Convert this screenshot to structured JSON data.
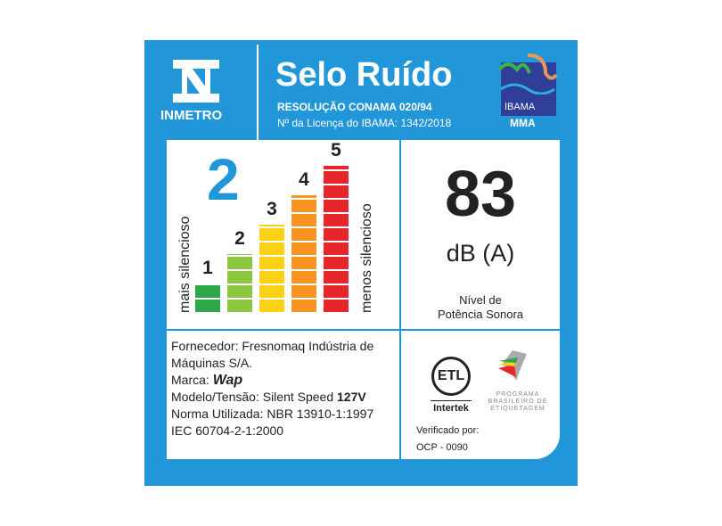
{
  "header": {
    "org": "INMETRO",
    "title": "Selo Ruído",
    "resolution": "RESOLUÇÃO CONAMA 020/94",
    "license": "Nº da Licença do IBAMA: 1342/2018",
    "ibama": "IBAMA",
    "mma": "MMA"
  },
  "rating": {
    "value": "2",
    "more_quiet": "mais silencioso",
    "less_quiet": "menos silencioso",
    "levels": [
      {
        "label": "1",
        "color": "#2aa84a",
        "fill": 1
      },
      {
        "label": "2",
        "color": "#8dc63f",
        "fill": 2
      },
      {
        "label": "3",
        "color": "#fcd116",
        "fill": 3
      },
      {
        "label": "4",
        "color": "#f7941d",
        "fill": 4
      },
      {
        "label": "5",
        "color": "#e8262a",
        "fill": 5
      }
    ]
  },
  "noise": {
    "value": "83",
    "unit": "dB (A)",
    "desc1": "Nível de",
    "desc2": "Potência Sonora"
  },
  "info": {
    "supplier": "Fornecedor: Fresnomaq Indústria de",
    "supplier2": "Máquinas S/A.",
    "brand_label": "Marca:",
    "brand": "Wap",
    "model_label": "Modelo/Tensão: Silent Speed ",
    "voltage": "127V",
    "norm": "Norma Utilizada: NBR 13910-1:1997",
    "norm2": "IEC 60704-2-1:2000"
  },
  "cert": {
    "etl": "ETL",
    "intertek": "Intertek",
    "pbe": "PROGRAMA BRASILEIRO DE ETIQUETAGEM",
    "verified": "Verificado por:",
    "ocp": "OCP - 0090"
  },
  "colors": {
    "blue": "#2196d8"
  }
}
